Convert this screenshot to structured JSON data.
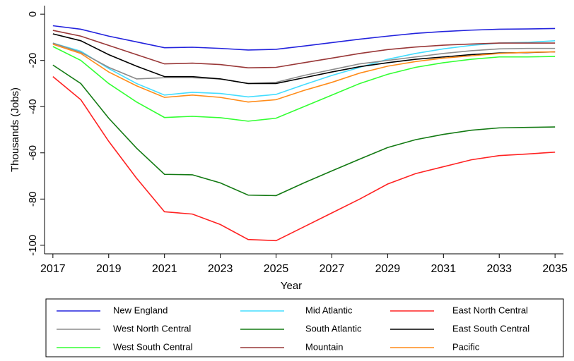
{
  "chart_data": {
    "type": "line",
    "x_label": "Year",
    "y_label": "Thousands (Jobs)",
    "x": [
      2017,
      2018,
      2019,
      2020,
      2021,
      2022,
      2023,
      2024,
      2025,
      2026,
      2027,
      2028,
      2029,
      2030,
      2031,
      2032,
      2033,
      2034,
      2035
    ],
    "xlim": [
      2016.7,
      2035.3
    ],
    "xticks": [
      2017,
      2019,
      2021,
      2023,
      2025,
      2027,
      2029,
      2031,
      2033,
      2035
    ],
    "ylim": [
      -103.7,
      3.7
    ],
    "yticks": [
      0,
      -20,
      -40,
      -60,
      -80,
      -100
    ],
    "grid": false,
    "legend": "bottom",
    "series": [
      {
        "name": "New England",
        "color": "#2323dd",
        "values": [
          -5,
          -6.5,
          -9.5,
          -12,
          -14.5,
          -14.3,
          -14.8,
          -15.5,
          -15.2,
          -13.8,
          -12.3,
          -10.8,
          -9.5,
          -8.3,
          -7.5,
          -6.9,
          -6.5,
          -6.4,
          -6.2
        ]
      },
      {
        "name": "Mid Atlantic",
        "color": "#44ddff",
        "values": [
          -12.5,
          -16,
          -23.5,
          -30,
          -35,
          -33.8,
          -34.3,
          -35.8,
          -34.7,
          -30.5,
          -26.5,
          -23,
          -19.5,
          -17,
          -15,
          -13.5,
          -12.5,
          -12.2,
          -11.5
        ]
      },
      {
        "name": "East North Central",
        "color": "#ff2222",
        "values": [
          -27,
          -37,
          -55,
          -71,
          -85.5,
          -86.5,
          -91,
          -97.5,
          -98,
          -92,
          -86,
          -80,
          -73.5,
          -69,
          -66,
          -63,
          -61.2,
          -60.5,
          -59.7
        ]
      },
      {
        "name": "West North Central",
        "color": "#8c8c8c",
        "values": [
          -12.5,
          -16.5,
          -23,
          -28,
          -27.5,
          -27.5,
          -28,
          -30,
          -29.5,
          -26.5,
          -24,
          -21.5,
          -20,
          -18.5,
          -17,
          -15.8,
          -15,
          -14.8,
          -14.8
        ]
      },
      {
        "name": "South Atlantic",
        "color": "#137a13",
        "values": [
          -22,
          -30,
          -45,
          -58,
          -69.3,
          -69.5,
          -73,
          -78.3,
          -78.5,
          -73,
          -67.8,
          -62.7,
          -57.7,
          -54.3,
          -52,
          -50.2,
          -49.2,
          -49,
          -48.8
        ]
      },
      {
        "name": "East South Central",
        "color": "#000000",
        "values": [
          -8.5,
          -11.5,
          -17.5,
          -22.5,
          -27,
          -27,
          -28,
          -30,
          -30,
          -27.5,
          -25,
          -22.7,
          -21,
          -19.5,
          -18.5,
          -17.5,
          -16.8,
          -16.6,
          -16.3
        ]
      },
      {
        "name": "West South Central",
        "color": "#33ff33",
        "values": [
          -14,
          -20,
          -30,
          -38,
          -44.7,
          -44.2,
          -44.8,
          -46.3,
          -45,
          -40,
          -35,
          -30,
          -26,
          -23,
          -21,
          -19.5,
          -18.5,
          -18.5,
          -18.3
        ]
      },
      {
        "name": "Mountain",
        "color": "#993838",
        "values": [
          -7,
          -9.5,
          -13.5,
          -17.5,
          -21.5,
          -21.2,
          -21.8,
          -23.2,
          -23,
          -21,
          -19,
          -17,
          -15.3,
          -14.2,
          -13.4,
          -12.9,
          -12.5,
          -12.5,
          -12.5
        ]
      },
      {
        "name": "Pacific",
        "color": "#ff8c1a",
        "values": [
          -13,
          -17,
          -25,
          -31,
          -36,
          -35,
          -36,
          -38,
          -37,
          -33,
          -29.5,
          -25.5,
          -22.5,
          -20.5,
          -19,
          -18,
          -17,
          -16.5,
          -16.3
        ]
      }
    ]
  }
}
